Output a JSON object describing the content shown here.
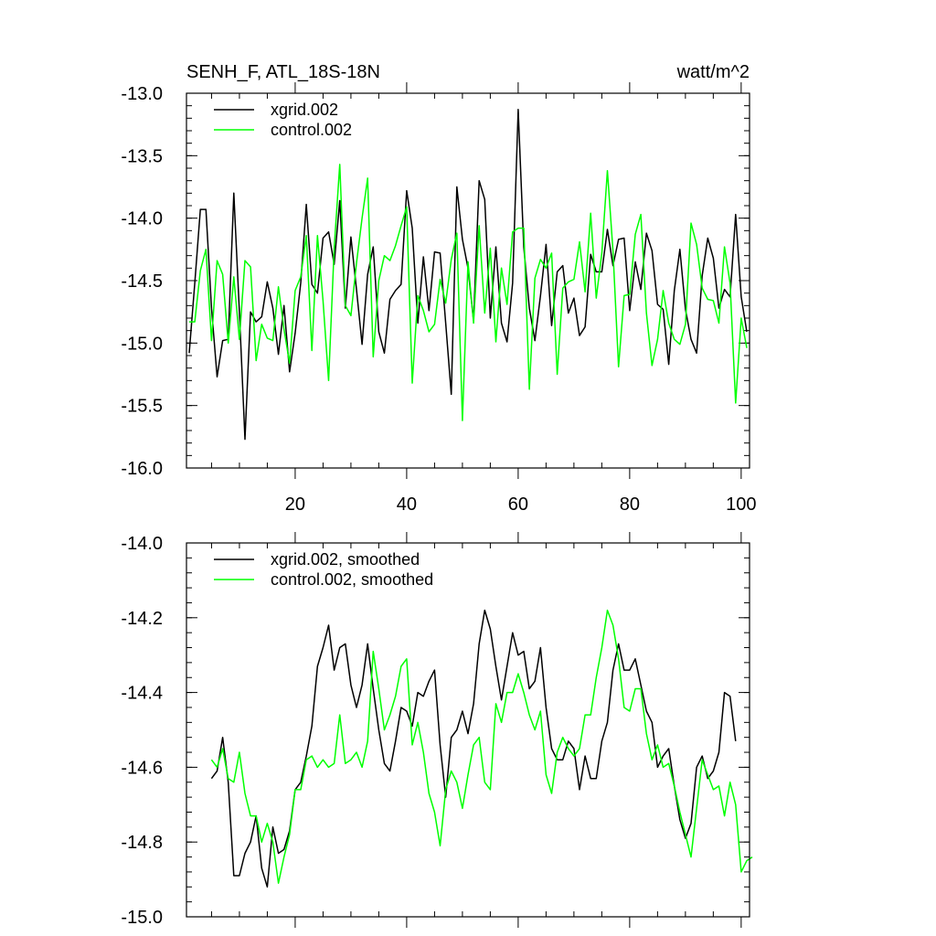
{
  "top_panel": {
    "title": "SENH_F, ATL_18S-18N",
    "units": "watt/m^2"
  },
  "chart_data": [
    {
      "type": "line",
      "title": "SENH_F, ATL_18S-18N",
      "units": "watt/m^2",
      "xlim": [
        0.5,
        101.5
      ],
      "ylim": [
        -16.0,
        -13.0
      ],
      "x_ticks": [
        20,
        40,
        60,
        80,
        100
      ],
      "x_tick_labels": [
        "20",
        "40",
        "60",
        "80",
        "100"
      ],
      "y_ticks": [
        -16.0,
        -15.5,
        -15.0,
        -14.5,
        -14.0,
        -13.5,
        -13.0
      ],
      "y_tick_labels": [
        "-16.0",
        "-15.5",
        "-15.0",
        "-14.5",
        "-14.0",
        "-13.5",
        "-13.0"
      ],
      "legend_position": "top-left",
      "x_start": 1,
      "series": [
        {
          "name": "xgrid.002",
          "color": "#000000",
          "values": [
            -15.08,
            -14.52,
            -13.93,
            -13.93,
            -14.72,
            -15.27,
            -14.98,
            -14.97,
            -13.8,
            -14.75,
            -15.77,
            -14.75,
            -14.83,
            -14.79,
            -14.51,
            -14.72,
            -15.09,
            -14.7,
            -15.23,
            -14.92,
            -14.52,
            -13.89,
            -14.53,
            -14.6,
            -14.16,
            -14.11,
            -14.37,
            -13.86,
            -14.72,
            -14.15,
            -14.57,
            -15.01,
            -14.45,
            -14.23,
            -14.91,
            -15.08,
            -14.65,
            -14.58,
            -14.53,
            -13.78,
            -14.08,
            -14.84,
            -14.31,
            -14.74,
            -14.27,
            -14.28,
            -14.84,
            -15.41,
            -13.75,
            -14.17,
            -14.4,
            -14.82,
            -13.7,
            -13.85,
            -14.8,
            -14.23,
            -14.84,
            -14.99,
            -14.52,
            -13.13,
            -14.23,
            -14.72,
            -14.98,
            -14.62,
            -14.21,
            -14.86,
            -14.43,
            -14.38,
            -14.76,
            -14.64,
            -14.94,
            -14.87,
            -14.29,
            -14.43,
            -14.43,
            -14.09,
            -14.38,
            -14.17,
            -14.16,
            -14.74,
            -14.35,
            -14.57,
            -14.12,
            -14.26,
            -14.69,
            -14.73,
            -15.17,
            -14.58,
            -14.25,
            -14.73,
            -14.97,
            -15.08,
            -14.46,
            -14.16,
            -14.32,
            -14.72,
            -14.57,
            -14.63,
            -13.97,
            -14.63,
            -14.91
          ]
        },
        {
          "name": "control.002",
          "color": "#00ff00",
          "values": [
            -14.83,
            -14.83,
            -14.42,
            -14.25,
            -14.98,
            -14.34,
            -14.45,
            -15.0,
            -14.47,
            -14.97,
            -14.34,
            -14.39,
            -15.14,
            -14.85,
            -14.96,
            -14.98,
            -14.55,
            -14.89,
            -15.16,
            -14.58,
            -14.47,
            -14.14,
            -15.06,
            -14.14,
            -14.66,
            -15.3,
            -14.24,
            -13.57,
            -14.7,
            -14.78,
            -14.36,
            -14.0,
            -13.68,
            -15.11,
            -14.5,
            -14.3,
            -14.34,
            -14.22,
            -14.06,
            -13.91,
            -15.32,
            -14.62,
            -14.74,
            -14.91,
            -14.85,
            -14.49,
            -14.68,
            -14.33,
            -14.12,
            -15.62,
            -14.35,
            -14.84,
            -14.06,
            -14.76,
            -14.24,
            -14.99,
            -14.4,
            -14.69,
            -14.11,
            -14.08,
            -14.08,
            -15.37,
            -14.48,
            -14.33,
            -14.4,
            -14.28,
            -15.25,
            -14.56,
            -14.51,
            -14.49,
            -14.19,
            -14.59,
            -13.96,
            -14.64,
            -14.28,
            -13.62,
            -14.26,
            -15.19,
            -14.62,
            -14.61,
            -14.13,
            -13.97,
            -14.76,
            -15.18,
            -14.97,
            -14.58,
            -14.84,
            -14.97,
            -15.01,
            -14.85,
            -14.04,
            -14.21,
            -14.56,
            -14.65,
            -14.66,
            -14.84,
            -14.23,
            -14.52,
            -15.48,
            -14.8,
            -15.04
          ]
        }
      ]
    },
    {
      "type": "line",
      "xlim": [
        0.5,
        101.5
      ],
      "ylim": [
        -15.0,
        -14.0
      ],
      "x_ticks": [
        20,
        40,
        60,
        80,
        100
      ],
      "x_tick_labels": [],
      "y_ticks": [
        -15.0,
        -14.8,
        -14.6,
        -14.4,
        -14.2,
        -14.0
      ],
      "y_tick_labels": [
        "-15.0",
        "-14.8",
        "-14.6",
        "-14.4",
        "-14.2",
        "-14.0"
      ],
      "legend_position": "top-left",
      "x_start": 5,
      "series": [
        {
          "name": "xgrid.002, smoothed",
          "color": "#000000",
          "values": [
            -14.63,
            -14.61,
            -14.52,
            -14.64,
            -14.89,
            -14.89,
            -14.83,
            -14.8,
            -14.73,
            -14.87,
            -14.92,
            -14.76,
            -14.83,
            -14.82,
            -14.77,
            -14.66,
            -14.64,
            -14.57,
            -14.49,
            -14.33,
            -14.28,
            -14.22,
            -14.34,
            -14.28,
            -14.27,
            -14.38,
            -14.44,
            -14.38,
            -14.27,
            -14.39,
            -14.5,
            -14.59,
            -14.61,
            -14.53,
            -14.44,
            -14.45,
            -14.49,
            -14.4,
            -14.41,
            -14.37,
            -14.34,
            -14.54,
            -14.68,
            -14.52,
            -14.5,
            -14.45,
            -14.51,
            -14.43,
            -14.27,
            -14.18,
            -14.23,
            -14.33,
            -14.42,
            -14.33,
            -14.24,
            -14.3,
            -14.29,
            -14.39,
            -14.37,
            -14.28,
            -14.44,
            -14.55,
            -14.58,
            -14.58,
            -14.53,
            -14.55,
            -14.66,
            -14.57,
            -14.63,
            -14.63,
            -14.53,
            -14.48,
            -14.34,
            -14.27,
            -14.34,
            -14.34,
            -14.31,
            -14.38,
            -14.45,
            -14.48,
            -14.6,
            -14.57,
            -14.55,
            -14.65,
            -14.74,
            -14.79,
            -14.75,
            -14.6,
            -14.57,
            -14.63,
            -14.61,
            -14.56,
            -14.4,
            -14.41,
            -14.53
          ]
        },
        {
          "name": "control.002, smoothed",
          "color": "#00ff00",
          "values": [
            -14.58,
            -14.6,
            -14.55,
            -14.63,
            -14.64,
            -14.56,
            -14.67,
            -14.73,
            -14.73,
            -14.8,
            -14.75,
            -14.8,
            -14.91,
            -14.84,
            -14.78,
            -14.66,
            -14.66,
            -14.58,
            -14.57,
            -14.6,
            -14.58,
            -14.6,
            -14.59,
            -14.46,
            -14.59,
            -14.58,
            -14.56,
            -14.6,
            -14.53,
            -14.29,
            -14.39,
            -14.5,
            -14.46,
            -14.41,
            -14.33,
            -14.31,
            -14.54,
            -14.48,
            -14.56,
            -14.67,
            -14.72,
            -14.81,
            -14.66,
            -14.61,
            -14.64,
            -14.71,
            -14.62,
            -14.54,
            -14.52,
            -14.64,
            -14.66,
            -14.43,
            -14.48,
            -14.4,
            -14.4,
            -14.35,
            -14.4,
            -14.46,
            -14.5,
            -14.45,
            -14.62,
            -14.67,
            -14.56,
            -14.52,
            -14.55,
            -14.57,
            -14.55,
            -14.46,
            -14.46,
            -14.36,
            -14.28,
            -14.18,
            -14.22,
            -14.31,
            -14.44,
            -14.45,
            -14.39,
            -14.39,
            -14.51,
            -14.58,
            -14.54,
            -14.6,
            -14.59,
            -14.65,
            -14.72,
            -14.78,
            -14.84,
            -14.71,
            -14.58,
            -14.62,
            -14.66,
            -14.65,
            -14.73,
            -14.64,
            -14.7,
            -14.88,
            -14.85,
            -14.84
          ]
        }
      ]
    }
  ]
}
